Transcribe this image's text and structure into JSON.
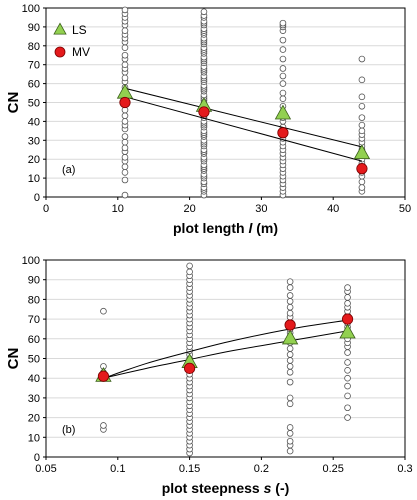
{
  "colors": {
    "ls": "#92d050",
    "mv": "#e41a1c",
    "obs": "#ffffff",
    "grid": "#d9d9d9",
    "line": "#000000"
  },
  "chart_data": [
    {
      "type": "scatter",
      "panel_label": "(a)",
      "ylabel": "CN",
      "xlabel_parts": [
        "plot length ",
        "l",
        " (m)"
      ],
      "xlim": [
        0,
        50
      ],
      "ylim": [
        0,
        100
      ],
      "xticks": [
        0,
        10,
        20,
        30,
        40,
        50
      ],
      "yticks": [
        0,
        10,
        20,
        30,
        40,
        50,
        60,
        70,
        80,
        90,
        100
      ],
      "grid": "horizontal",
      "legend": {
        "position": "top-left",
        "entries": [
          {
            "name": "LS",
            "marker": "triangle"
          },
          {
            "name": "MV",
            "marker": "circle"
          }
        ]
      },
      "series": [
        {
          "name": "LS",
          "x": [
            11,
            22,
            33,
            44
          ],
          "y": [
            55,
            48,
            44,
            23
          ]
        },
        {
          "name": "MV",
          "x": [
            11,
            22,
            33,
            44
          ],
          "y": [
            50,
            45,
            34,
            15
          ]
        }
      ],
      "trend_lines": [
        {
          "series": "LS",
          "from": [
            11,
            57.5
          ],
          "to": [
            44,
            26.5
          ]
        },
        {
          "series": "MV",
          "from": [
            11,
            53
          ],
          "to": [
            44,
            19
          ]
        }
      ],
      "observations": [
        {
          "x": 11,
          "y": [
            1,
            9,
            13,
            16,
            19,
            21,
            24,
            26,
            29,
            32,
            36,
            38,
            40,
            43,
            46,
            49,
            52,
            55,
            58,
            61,
            63,
            66,
            68,
            70,
            73,
            75,
            79,
            82,
            84,
            86,
            88,
            91,
            93,
            95,
            97,
            99
          ]
        },
        {
          "x": 22,
          "y": [
            1,
            3,
            4,
            5,
            7,
            8,
            10,
            11,
            12,
            14,
            15,
            16,
            17,
            19,
            20,
            21,
            23,
            24,
            25,
            27,
            28,
            29,
            30,
            32,
            33,
            34,
            35,
            37,
            38,
            39,
            40,
            42,
            43,
            44,
            46,
            47,
            48,
            49,
            51,
            52,
            53,
            54,
            56,
            57,
            58,
            59,
            61,
            62,
            63,
            64,
            66,
            67,
            68,
            69,
            71,
            72,
            73,
            74,
            76,
            77,
            78,
            79,
            81,
            82,
            83,
            84,
            86,
            87,
            88,
            89,
            91,
            92,
            93,
            95,
            96,
            98
          ]
        },
        {
          "x": 33,
          "y": [
            1,
            3,
            5,
            7,
            9,
            11,
            13,
            15,
            17,
            19,
            21,
            23,
            25,
            27,
            29,
            31,
            33,
            35,
            37,
            40,
            42,
            45,
            48,
            52,
            55,
            60,
            64,
            68,
            73,
            78,
            83,
            88,
            90,
            91,
            92
          ]
        },
        {
          "x": 44,
          "y": [
            3,
            5,
            8,
            11,
            13,
            15,
            18,
            20,
            22,
            25,
            27,
            29,
            31,
            33,
            35,
            38,
            42,
            48,
            53,
            62,
            73
          ]
        }
      ]
    },
    {
      "type": "scatter",
      "panel_label": "(b)",
      "ylabel": "CN",
      "xlabel_parts": [
        "plot steepness ",
        "s",
        " (-)"
      ],
      "xlim": [
        0.05,
        0.3
      ],
      "ylim": [
        0,
        100
      ],
      "xticks": [
        0.05,
        0.1,
        0.15,
        0.2,
        0.25,
        0.3
      ],
      "xtick_labels": [
        "0.05",
        "0.1",
        "0.15",
        "0.2",
        "0.25",
        "0.3"
      ],
      "yticks": [
        0,
        10,
        20,
        30,
        40,
        50,
        60,
        70,
        80,
        90,
        100
      ],
      "grid": "horizontal",
      "series": [
        {
          "name": "LS",
          "x": [
            0.09,
            0.15,
            0.22,
            0.26
          ],
          "y": [
            41,
            48,
            60,
            63
          ]
        },
        {
          "name": "MV",
          "x": [
            0.09,
            0.15,
            0.22,
            0.26
          ],
          "y": [
            41,
            45,
            67,
            70
          ]
        }
      ],
      "trend_curves": [
        {
          "series": "MV",
          "points": [
            [
              0.09,
              40
            ],
            [
              0.12,
              47.5
            ],
            [
              0.15,
              53.5
            ],
            [
              0.18,
              59
            ],
            [
              0.22,
              65
            ],
            [
              0.26,
              69.5
            ]
          ]
        },
        {
          "series": "LS",
          "points": [
            [
              0.09,
              40
            ],
            [
              0.12,
              45
            ],
            [
              0.15,
              49.5
            ],
            [
              0.18,
              54
            ],
            [
              0.22,
              59
            ],
            [
              0.26,
              64
            ]
          ]
        }
      ],
      "observations": [
        {
          "x": 0.09,
          "y": [
            14,
            16,
            40,
            42,
            43,
            46,
            74
          ]
        },
        {
          "x": 0.15,
          "y": [
            2,
            4,
            6,
            8,
            10,
            12,
            14,
            16,
            18,
            20,
            22,
            24,
            26,
            28,
            30,
            32,
            34,
            36,
            38,
            40,
            42,
            44,
            46,
            48,
            50,
            52,
            54,
            56,
            58,
            60,
            62,
            64,
            66,
            68,
            70,
            72,
            74,
            76,
            78,
            80,
            82,
            84,
            86,
            88,
            90,
            92,
            94,
            97
          ]
        },
        {
          "x": 0.22,
          "y": [
            3,
            6,
            8,
            12,
            15,
            27,
            30,
            38,
            43,
            46,
            49,
            52,
            55,
            58,
            60,
            63,
            65,
            68,
            71,
            73,
            76,
            79,
            82,
            86,
            89
          ]
        },
        {
          "x": 0.26,
          "y": [
            20,
            25,
            31,
            36,
            40,
            44,
            48,
            53,
            56,
            58,
            60,
            62,
            64,
            66,
            68,
            70,
            72,
            74,
            76,
            78,
            81,
            84,
            86
          ]
        }
      ]
    }
  ]
}
